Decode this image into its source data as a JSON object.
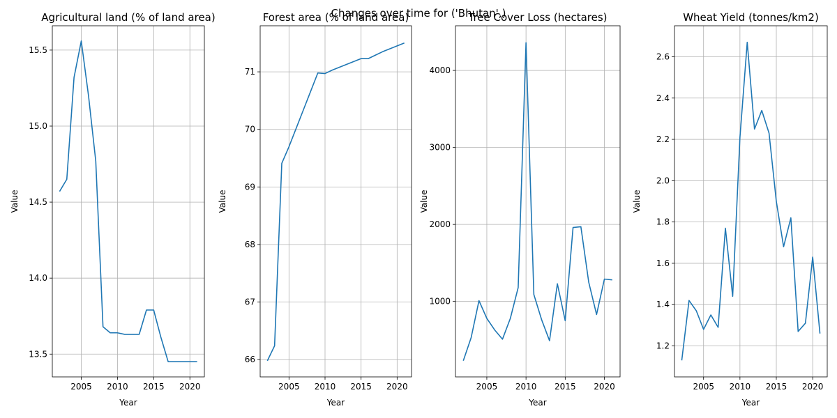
{
  "figure_title": "Changes over time for ('Bhutan',)",
  "colors": {
    "line": "#1f77b4",
    "grid": "#b0b0b0",
    "axis": "#000000"
  },
  "chart_data": [
    {
      "type": "line",
      "title": "Agricultural land (% of land area)",
      "xlabel": "Year",
      "ylabel": "Value",
      "grid": true,
      "xlim": [
        2001,
        2022
      ],
      "ylim": [
        13.35,
        15.66
      ],
      "xticks": [
        2005,
        2010,
        2015,
        2020
      ],
      "yticks": [
        13.5,
        14.0,
        14.5,
        15.0,
        15.5
      ],
      "ytick_labels": [
        "13.5",
        "14.0",
        "14.5",
        "15.0",
        "15.5"
      ],
      "x": [
        2002,
        2003,
        2004,
        2005,
        2006,
        2007,
        2008,
        2009,
        2010,
        2011,
        2012,
        2013,
        2014,
        2015,
        2016,
        2017,
        2018,
        2019,
        2020,
        2021
      ],
      "y": [
        14.57,
        14.65,
        15.32,
        15.56,
        15.2,
        14.77,
        13.68,
        13.64,
        13.64,
        13.63,
        13.63,
        13.63,
        13.79,
        13.79,
        13.61,
        13.45,
        13.45,
        13.45,
        13.45,
        13.45
      ]
    },
    {
      "type": "line",
      "title": "Forest area (% of land area)",
      "xlabel": "Year",
      "ylabel": "Value",
      "grid": true,
      "xlim": [
        2001,
        2022
      ],
      "ylim": [
        65.7,
        71.8
      ],
      "xticks": [
        2005,
        2010,
        2015,
        2020
      ],
      "yticks": [
        66,
        67,
        68,
        69,
        70,
        71
      ],
      "ytick_labels": [
        "66",
        "67",
        "68",
        "69",
        "70",
        "71"
      ],
      "x": [
        2002,
        2003,
        2004,
        2005,
        2006,
        2007,
        2008,
        2009,
        2010,
        2011,
        2012,
        2013,
        2014,
        2015,
        2016,
        2017,
        2018,
        2019,
        2020,
        2021
      ],
      "y": [
        65.98,
        66.24,
        69.41,
        69.7,
        70.02,
        70.34,
        70.66,
        70.98,
        70.97,
        71.03,
        71.08,
        71.13,
        71.18,
        71.23,
        71.23,
        71.29,
        71.35,
        71.4,
        71.45,
        71.5
      ]
    },
    {
      "type": "line",
      "title": "Tree Cover Loss (hectares)",
      "xlabel": "Year",
      "ylabel": "Value",
      "grid": true,
      "xlim": [
        2001,
        2022
      ],
      "ylim": [
        20,
        4580
      ],
      "xticks": [
        2005,
        2010,
        2015,
        2020
      ],
      "yticks": [
        1000,
        2000,
        3000,
        4000
      ],
      "ytick_labels": [
        "1000",
        "2000",
        "3000",
        "4000"
      ],
      "x": [
        2002,
        2003,
        2004,
        2005,
        2006,
        2007,
        2008,
        2009,
        2010,
        2011,
        2012,
        2013,
        2014,
        2015,
        2016,
        2017,
        2018,
        2019,
        2020,
        2021
      ],
      "y": [
        230,
        530,
        1010,
        780,
        630,
        510,
        780,
        1180,
        4360,
        1090,
        760,
        490,
        1230,
        750,
        1960,
        1970,
        1250,
        830,
        1290,
        1280
      ]
    },
    {
      "type": "line",
      "title": "Wheat Yield (tonnes/km2)",
      "xlabel": "Year",
      "ylabel": "Value",
      "grid": true,
      "xlim": [
        2001,
        2022
      ],
      "ylim": [
        1.05,
        2.75
      ],
      "xticks": [
        2005,
        2010,
        2015,
        2020
      ],
      "yticks": [
        1.2,
        1.4,
        1.6,
        1.8,
        2.0,
        2.2,
        2.4,
        2.6
      ],
      "ytick_labels": [
        "1.2",
        "1.4",
        "1.6",
        "1.8",
        "2.0",
        "2.2",
        "2.4",
        "2.6"
      ],
      "x": [
        2002,
        2003,
        2004,
        2005,
        2006,
        2007,
        2008,
        2009,
        2010,
        2011,
        2012,
        2013,
        2014,
        2015,
        2016,
        2017,
        2018,
        2019,
        2020,
        2021
      ],
      "y": [
        1.13,
        1.42,
        1.37,
        1.28,
        1.35,
        1.29,
        1.77,
        1.44,
        2.21,
        2.67,
        2.25,
        2.34,
        2.23,
        1.9,
        1.68,
        1.82,
        1.27,
        1.31,
        1.63,
        1.26
      ]
    }
  ]
}
